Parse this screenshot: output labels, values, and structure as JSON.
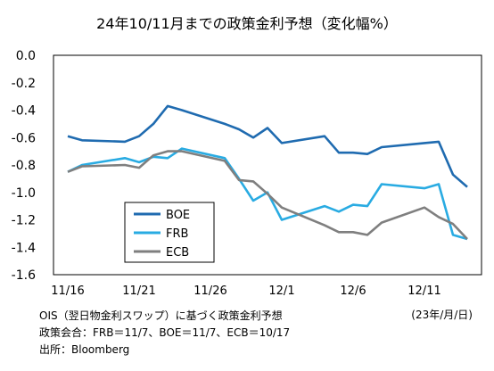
{
  "chart_data": {
    "type": "line",
    "title": "24年10/11月までの政策金利予想（変化幅%）",
    "x_ticks": [
      "11/16",
      "11/21",
      "11/26",
      "12/1",
      "12/6",
      "12/11"
    ],
    "x_unit_label": "(23年/月/日)",
    "ylim": [
      -1.6,
      0.0
    ],
    "y_ticks": [
      "0.0",
      "-0.2",
      "-0.4",
      "-0.6",
      "-0.8",
      "-1.0",
      "-1.2",
      "-1.4",
      "-1.6"
    ],
    "grid": false,
    "legend_position": "bottom-left",
    "x": [
      "11/16",
      "11/17",
      "11/20",
      "11/21",
      "11/22",
      "11/23",
      "11/24",
      "11/27",
      "11/28",
      "11/29",
      "11/30",
      "12/1",
      "12/4",
      "12/5",
      "12/6",
      "12/7",
      "12/8",
      "12/11",
      "12/12",
      "12/13",
      "12/14"
    ],
    "series": [
      {
        "name": "BOE",
        "color": "#1f6bb0",
        "values": [
          -0.59,
          -0.62,
          -0.63,
          -0.59,
          -0.5,
          -0.37,
          -0.4,
          -0.5,
          -0.54,
          -0.6,
          -0.53,
          -0.64,
          -0.59,
          -0.71,
          -0.71,
          -0.72,
          -0.67,
          -0.64,
          -0.63,
          -0.87,
          -0.96
        ]
      },
      {
        "name": "FRB",
        "color": "#29abe2",
        "values": [
          -0.85,
          -0.8,
          -0.75,
          -0.78,
          -0.74,
          -0.75,
          -0.68,
          -0.75,
          -0.9,
          -1.06,
          -1.0,
          -1.2,
          -1.1,
          -1.14,
          -1.09,
          -1.1,
          -0.94,
          -0.97,
          -0.94,
          -1.31,
          -1.34
        ]
      },
      {
        "name": "ECB",
        "color": "#7f7f7f",
        "values": [
          -0.85,
          -0.81,
          -0.8,
          -0.82,
          -0.73,
          -0.7,
          -0.7,
          -0.77,
          -0.91,
          -0.92,
          -1.01,
          -1.11,
          -1.24,
          -1.29,
          -1.29,
          -1.31,
          -1.22,
          -1.11,
          -1.18,
          -1.23,
          -1.34
        ]
      }
    ]
  },
  "notes": [
    "OIS（翌日物金利スワップ）に基づく政策金利予想",
    "政策会合：FRB＝11/7、BOE＝11/7、ECB＝10/17",
    "出所：Bloomberg"
  ]
}
